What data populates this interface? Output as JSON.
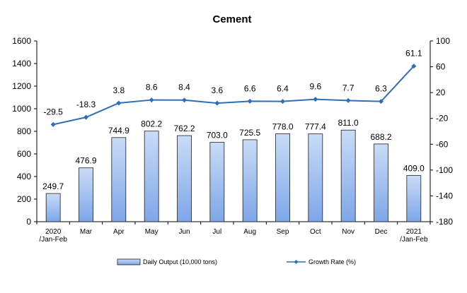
{
  "chart_data": {
    "type": "bar+line",
    "title": "Cement",
    "categories": [
      "2020\n/Jan-Feb",
      "Mar",
      "Apr",
      "May",
      "Jun",
      "Jul",
      "Aug",
      "Sep",
      "Oct",
      "Nov",
      "Dec",
      "2021\n/Jan-Feb"
    ],
    "series": [
      {
        "name": "Daily Output (10,000 tons)",
        "type": "bar",
        "axis": "left",
        "values": [
          249.7,
          476.9,
          744.9,
          802.2,
          762.2,
          703.0,
          725.5,
          778.0,
          777.4,
          811.0,
          688.2,
          409.0
        ],
        "labels": [
          "249.7",
          "476.9",
          "744.9",
          "802.2",
          "762.2",
          "703.0",
          "725.5",
          "778.0",
          "777.4",
          "811.0",
          "688.2",
          "409.0"
        ]
      },
      {
        "name": "Growth Rate (%)",
        "type": "line",
        "axis": "right",
        "values": [
          -29.5,
          -18.3,
          3.8,
          8.6,
          8.4,
          3.6,
          6.6,
          6.4,
          9.6,
          7.7,
          6.3,
          61.1
        ],
        "labels": [
          "-29.5",
          "-18.3",
          "3.8",
          "8.6",
          "8.4",
          "3.6",
          "6.6",
          "6.4",
          "9.6",
          "7.7",
          "6.3",
          "61.1"
        ]
      }
    ],
    "y_left": {
      "min": 0,
      "max": 1600,
      "ticks": [
        0,
        200,
        400,
        600,
        800,
        1000,
        1200,
        1400,
        1600
      ]
    },
    "y_right": {
      "min": -180,
      "max": 100,
      "ticks": [
        -180,
        -140,
        -100,
        -60,
        -20,
        20,
        60,
        100
      ]
    },
    "legend_position": "bottom",
    "grid": false,
    "colors": {
      "bar_fill_top": "#c9dcf7",
      "bar_fill_bottom": "#7ea6e8",
      "bar_stroke": "#1f1f1f",
      "line": "#2e6fb7"
    }
  }
}
